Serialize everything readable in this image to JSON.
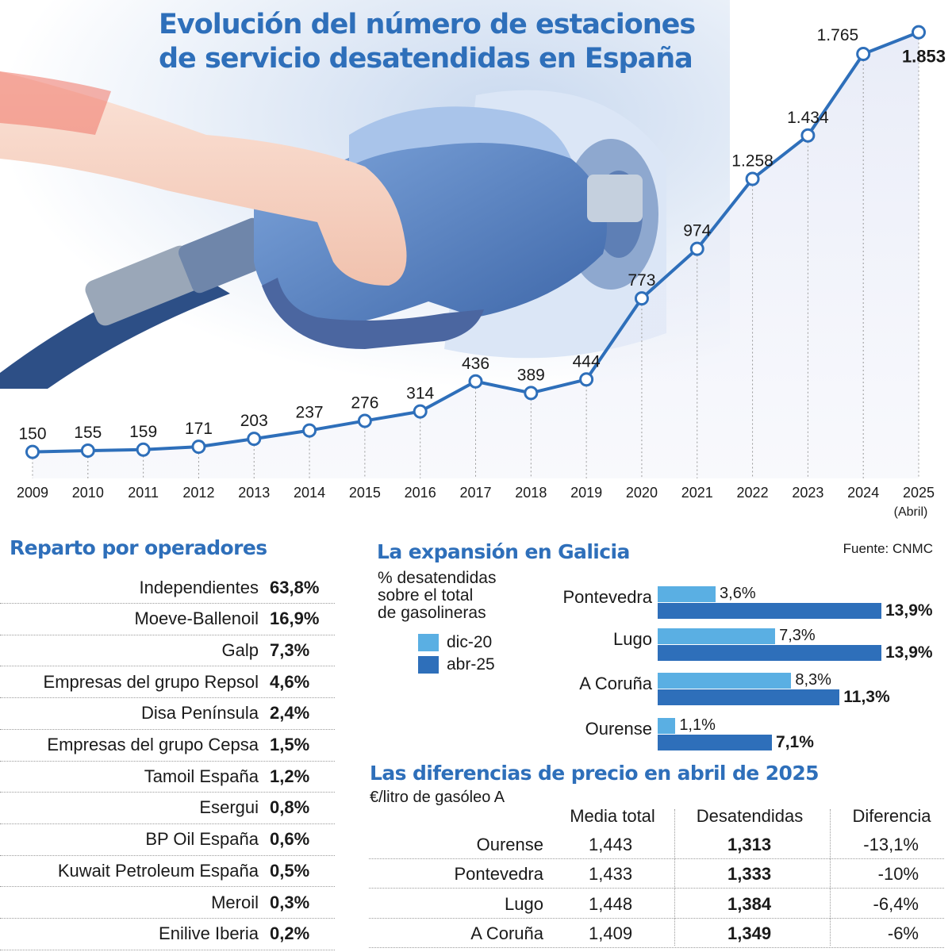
{
  "title_line1": "Evolución del número de estaciones",
  "title_line2": "de servicio desatendidas en España",
  "chart_data": [
    {
      "type": "line",
      "title": "Evolución del número de estaciones de servicio desatendidas en España",
      "x": [
        "2009",
        "2010",
        "2011",
        "2012",
        "2013",
        "2014",
        "2015",
        "2016",
        "2017",
        "2018",
        "2019",
        "2020",
        "2021",
        "2022",
        "2023",
        "2024",
        "2025"
      ],
      "x_note_last": "(Abril)",
      "values": [
        150,
        155,
        159,
        171,
        203,
        237,
        276,
        314,
        436,
        389,
        444,
        773,
        974,
        1258,
        1434,
        1765,
        1853
      ],
      "value_labels": [
        "150",
        "155",
        "159",
        "171",
        "203",
        "237",
        "276",
        "314",
        "436",
        "389",
        "444",
        "773",
        "974",
        "1.258",
        "1.434",
        "1.765",
        "1.853"
      ],
      "ylim": [
        0,
        1900
      ],
      "grid": false,
      "color": "#2e6fba"
    },
    {
      "type": "bar",
      "title": "La expansión en Galicia",
      "subtitle": [
        "% desatendidas",
        "sobre el total",
        "de gasolineras"
      ],
      "categories": [
        "Pontevedra",
        "Lugo",
        "A Coruña",
        "Ourense"
      ],
      "series": [
        {
          "name": "dic-20",
          "values": [
            3.6,
            7.3,
            8.3,
            1.1
          ],
          "labels": [
            "3,6%",
            "7,3%",
            "8,3%",
            "1,1%"
          ],
          "color": "#5aafe3"
        },
        {
          "name": "abr-25",
          "values": [
            13.9,
            13.9,
            11.3,
            7.1
          ],
          "labels": [
            "13,9%",
            "13,9%",
            "11,3%",
            "7,1%"
          ],
          "color": "#2e6fba"
        }
      ],
      "legend": "left"
    },
    {
      "type": "table",
      "title": "Reparto por operadores",
      "rows": [
        {
          "name": "Independientes",
          "value": "63,8%"
        },
        {
          "name": "Moeve-Ballenoil",
          "value": "16,9%"
        },
        {
          "name": "Galp",
          "value": "7,3%"
        },
        {
          "name": "Empresas del grupo Repsol",
          "value": "4,6%"
        },
        {
          "name": "Disa Península",
          "value": "2,4%"
        },
        {
          "name": "Empresas del grupo Cepsa",
          "value": "1,5%"
        },
        {
          "name": "Tamoil España",
          "value": "1,2%"
        },
        {
          "name": "Esergui",
          "value": "0,8%"
        },
        {
          "name": "BP Oil España",
          "value": "0,6%"
        },
        {
          "name": "Kuwait Petroleum España",
          "value": "0,5%"
        },
        {
          "name": "Meroil",
          "value": "0,3%"
        },
        {
          "name": "Enilive Iberia",
          "value": "0,2%"
        }
      ]
    },
    {
      "type": "table",
      "title": "Las diferencias de precio en abril de 2025",
      "subtitle": "€/litro de gasóleo A",
      "columns": [
        "Media total",
        "Desatendidas",
        "Diferencia"
      ],
      "rows": [
        {
          "province": "Ourense",
          "media": "1,443",
          "desatendidas": "1,313",
          "diferencia": "-13,1%"
        },
        {
          "province": "Pontevedra",
          "media": "1,433",
          "desatendidas": "1,333",
          "diferencia": "-10%"
        },
        {
          "province": "Lugo",
          "media": "1,448",
          "desatendidas": "1,384",
          "diferencia": "-6,4%"
        },
        {
          "province": "A Coruña",
          "media": "1,409",
          "desatendidas": "1,349",
          "diferencia": "-6%"
        }
      ]
    }
  ],
  "source": "Fuente: CNMC"
}
